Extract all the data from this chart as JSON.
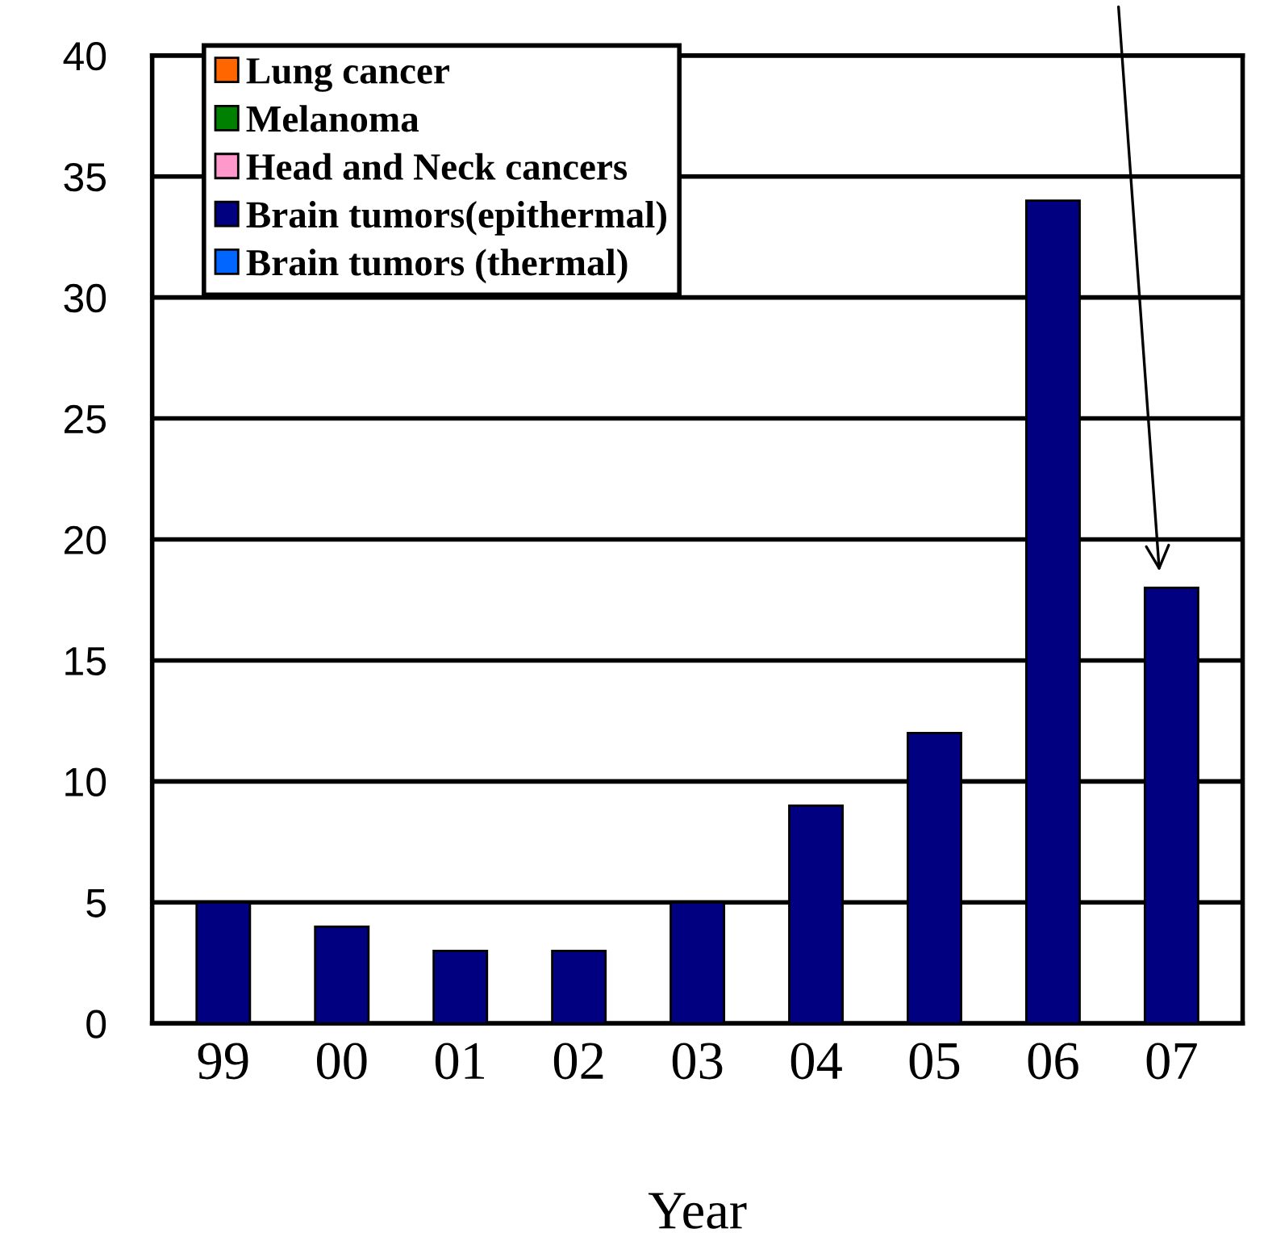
{
  "chart_data": {
    "type": "bar",
    "stacked": true,
    "xlabel": "Year",
    "categories": [
      "99",
      "00",
      "01",
      "02",
      "03",
      "04",
      "05",
      "06",
      "07"
    ],
    "series": [
      {
        "name": "Lung cancer",
        "color": "#ff6600",
        "values": [
          null,
          null,
          null,
          null,
          null,
          null,
          null,
          null,
          null
        ]
      },
      {
        "name": "Melanoma",
        "color": "#008000",
        "values": [
          null,
          null,
          null,
          null,
          null,
          null,
          null,
          null,
          null
        ]
      },
      {
        "name": "Head and Neck cancers",
        "color": "#ff99cc",
        "values": [
          null,
          null,
          null,
          null,
          null,
          null,
          null,
          null,
          null
        ]
      },
      {
        "name": "Brain tumors(epithermal)",
        "color": "#000080",
        "values": [
          5,
          4,
          3,
          3,
          5,
          9,
          12,
          34,
          18
        ]
      },
      {
        "name": "Brain tumors (thermal)",
        "color": "#0066ff",
        "values": [
          null,
          null,
          null,
          null,
          null,
          null,
          null,
          null,
          null
        ]
      }
    ],
    "ylim": [
      0,
      40
    ],
    "yticks": [
      0,
      5,
      10,
      15,
      20,
      25,
      30,
      35,
      40
    ],
    "grid": "y",
    "legend": "top left"
  }
}
